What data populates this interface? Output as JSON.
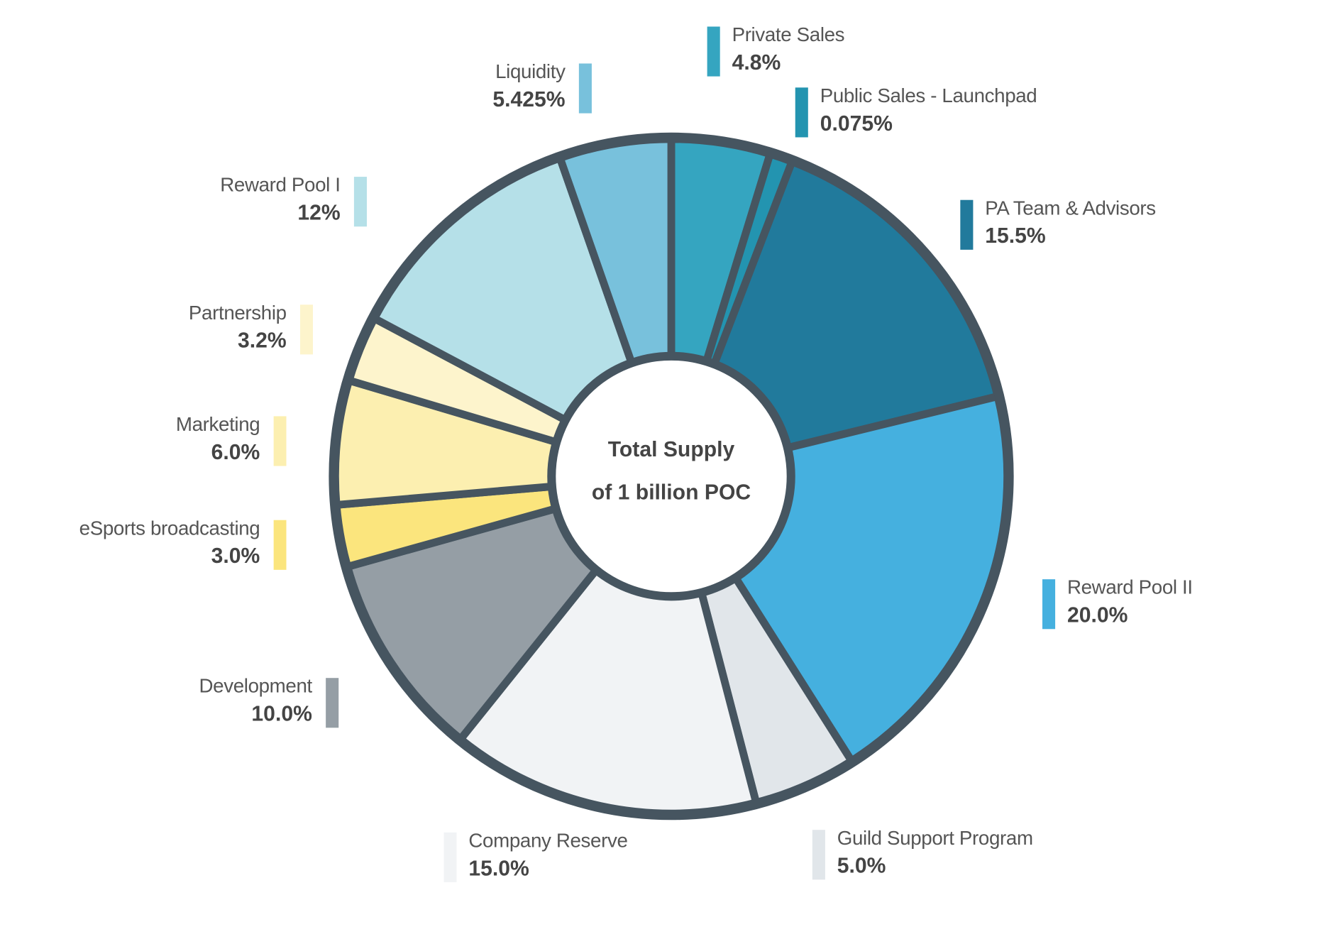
{
  "chart_data": {
    "type": "pie",
    "variant": "donut",
    "title": "Total Supply of 1 billion POC",
    "center_text": [
      "Total Supply",
      "of 1 billion POC"
    ],
    "start": "top",
    "direction": "clockwise",
    "slices": [
      {
        "label": "Private Sales",
        "value_text": "4.8%",
        "value": 4.8,
        "color": "#35a5c0"
      },
      {
        "label": "Public Sales - Launchpad",
        "value_text": "0.075%",
        "value": 0.075,
        "color": "#2394b0"
      },
      {
        "label": "PA Team & Advisors",
        "value_text": "15.5%",
        "value": 15.5,
        "color": "#217a9c"
      },
      {
        "label": "Reward Pool II",
        "value_text": "20.0%",
        "value": 20.0,
        "color": "#45b0df"
      },
      {
        "label": "Guild Support Program",
        "value_text": "5.0%",
        "value": 5.0,
        "color": "#e1e6ea"
      },
      {
        "label": "Company Reserve",
        "value_text": "15.0%",
        "value": 15.0,
        "color": "#f1f3f5"
      },
      {
        "label": "Development",
        "value_text": "10.0%",
        "value": 10.0,
        "color": "#959ea5"
      },
      {
        "label": "eSports broadcasting",
        "value_text": "3.0%",
        "value": 3.0,
        "color": "#fbe57d"
      },
      {
        "label": "Marketing",
        "value_text": "6.0%",
        "value": 6.0,
        "color": "#fcefb0"
      },
      {
        "label": "Partnership",
        "value_text": "3.2%",
        "value": 3.2,
        "color": "#fdf4cc"
      },
      {
        "label": "Reward Pool I",
        "value_text": "12%",
        "value": 12,
        "color": "#b5e0e8"
      },
      {
        "label": "Liquidity",
        "value_text": "5.425%",
        "value": 5.425,
        "color": "#78c1dc"
      }
    ],
    "outline_color": "#465560"
  }
}
